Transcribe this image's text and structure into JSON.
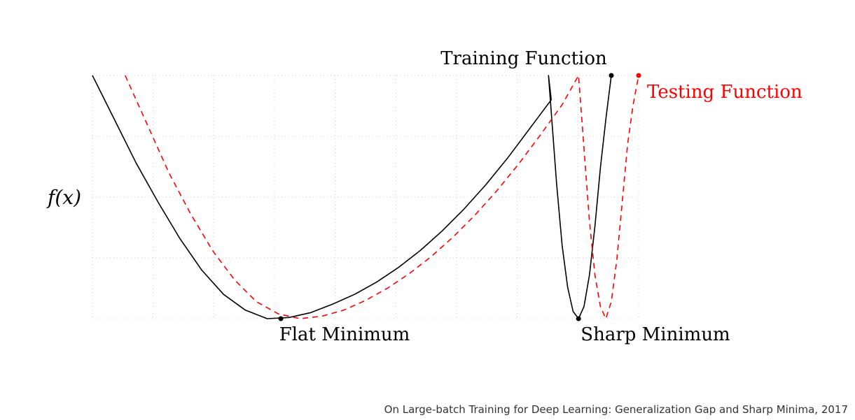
{
  "chart_data": {
    "type": "line",
    "ylabel": "f(x)",
    "grid": true,
    "series": [
      {
        "name": "Training Function",
        "style": "solid",
        "color": "#000000",
        "x": [
          0.0,
          0.04,
          0.08,
          0.12,
          0.16,
          0.2,
          0.24,
          0.28,
          0.32,
          0.36,
          0.4,
          0.44,
          0.48,
          0.52,
          0.56,
          0.6,
          0.64,
          0.68,
          0.72,
          0.76,
          0.8,
          0.84,
          0.835,
          0.85,
          0.86,
          0.87,
          0.88,
          0.89,
          0.9,
          0.91,
          0.92,
          0.93,
          0.94,
          0.95
        ],
        "y": [
          1.0,
          0.82,
          0.64,
          0.48,
          0.33,
          0.2,
          0.1,
          0.035,
          0.0,
          0.005,
          0.025,
          0.06,
          0.1,
          0.15,
          0.21,
          0.28,
          0.36,
          0.45,
          0.55,
          0.66,
          0.78,
          0.9,
          1.0,
          0.55,
          0.3,
          0.13,
          0.03,
          0.0,
          0.05,
          0.18,
          0.38,
          0.62,
          0.82,
          1.0
        ]
      },
      {
        "name": "Testing Function",
        "style": "dashed",
        "color": "#ff0000",
        "x": [
          0.06,
          0.1,
          0.14,
          0.18,
          0.22,
          0.26,
          0.3,
          0.34,
          0.38,
          0.42,
          0.46,
          0.5,
          0.54,
          0.58,
          0.62,
          0.66,
          0.7,
          0.74,
          0.78,
          0.82,
          0.86,
          0.89,
          0.9,
          0.91,
          0.92,
          0.93,
          0.94,
          0.95,
          0.96,
          0.97,
          0.98,
          0.99,
          1.0
        ],
        "y": [
          1.0,
          0.8,
          0.6,
          0.43,
          0.28,
          0.16,
          0.07,
          0.02,
          0.0,
          0.01,
          0.035,
          0.075,
          0.125,
          0.185,
          0.255,
          0.335,
          0.425,
          0.525,
          0.635,
          0.755,
          0.88,
          1.0,
          0.7,
          0.4,
          0.18,
          0.05,
          0.0,
          0.07,
          0.24,
          0.48,
          0.72,
          0.88,
          1.0
        ]
      }
    ],
    "markers": [
      {
        "x": 0.345,
        "y": 0.0,
        "color": "#000000"
      },
      {
        "x": 0.89,
        "y": 0.0,
        "color": "#000000"
      },
      {
        "x": 0.95,
        "y": 1.0,
        "color": "#000000"
      },
      {
        "x": 1.0,
        "y": 1.0,
        "color": "#ff0000"
      }
    ],
    "annotations": [
      {
        "text": "Training Function",
        "color": "#000000"
      },
      {
        "text": "Testing Function",
        "color": "#ff0000"
      },
      {
        "text": "Flat Minimum",
        "color": "#000000"
      },
      {
        "text": "Sharp Minimum",
        "color": "#000000"
      }
    ],
    "xlim": [
      0,
      1
    ],
    "ylim": [
      0,
      1
    ]
  },
  "caption": "On Large-batch Training for Deep Learning: Generalization Gap and Sharp Minima, 2017"
}
